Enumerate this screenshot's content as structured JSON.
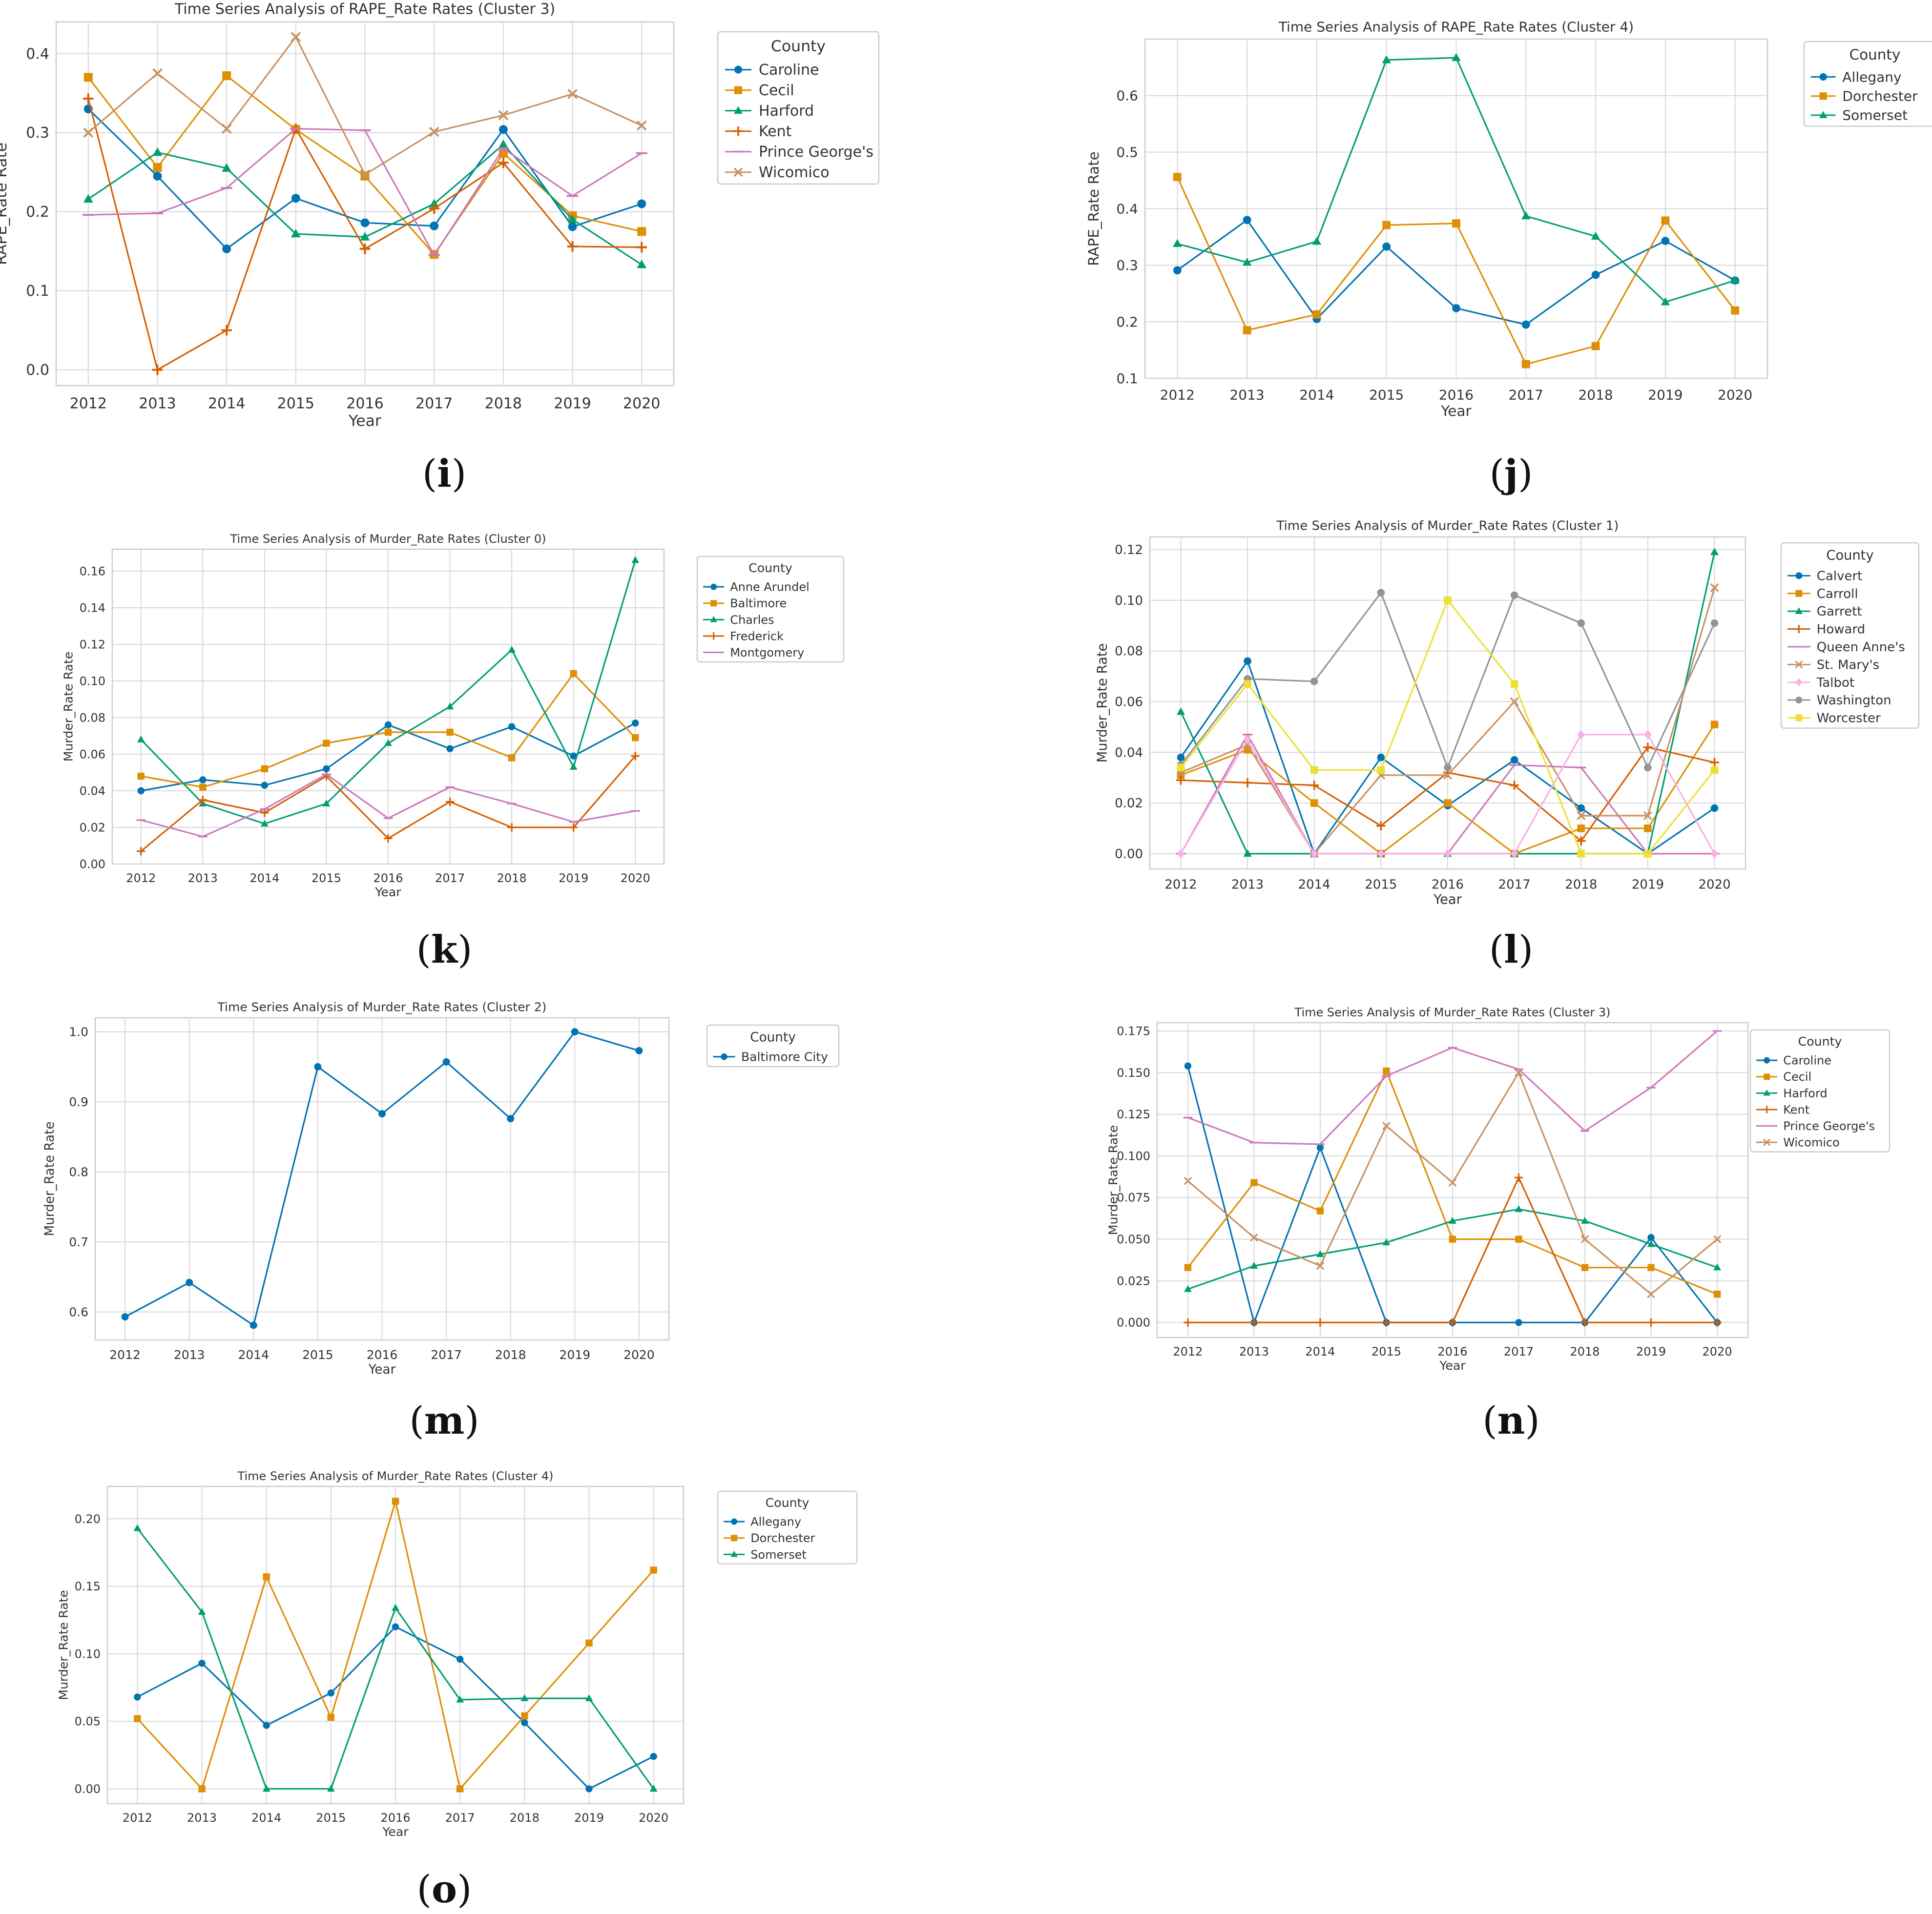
{
  "colors": {
    "palette": [
      "#0173B2",
      "#DE8F05",
      "#029E73",
      "#D55E00",
      "#CC78BC",
      "#CA9161",
      "#FBAFE4",
      "#949494",
      "#ECE133"
    ],
    "grid": "#d8d8d8",
    "axis": "#cccccc",
    "text": "#333333"
  },
  "legend_title": "County",
  "xlabel": "Year",
  "panels": [
    {
      "caption": "i",
      "chart_data": {
        "type": "line",
        "title": "Time Series Analysis of RAPE_Rate Rates (Cluster 3)",
        "xlabel": "Year",
        "ylabel": "RAPE_Rate Rate",
        "x": [
          2012,
          2013,
          2014,
          2015,
          2016,
          2017,
          2018,
          2019,
          2020
        ],
        "yticks": [
          "0.0",
          "0.1",
          "0.2",
          "0.3",
          "0.4"
        ],
        "ytick_values": [
          0,
          0.1,
          0.2,
          0.3,
          0.4
        ],
        "ylim": [
          -0.02,
          0.44
        ],
        "grid": true,
        "legend": "right",
        "series": [
          {
            "name": "Caroline",
            "marker": "circle",
            "values": [
              0.33,
              0.245,
              0.153,
              0.217,
              0.186,
              0.182,
              0.304,
              0.181,
              0.21
            ]
          },
          {
            "name": "Cecil",
            "marker": "square",
            "values": [
              0.37,
              0.256,
              0.372,
              0.304,
              0.245,
              0.146,
              0.274,
              0.195,
              0.175
            ]
          },
          {
            "name": "Harford",
            "marker": "triangle",
            "values": [
              0.216,
              0.275,
              0.255,
              0.172,
              0.168,
              0.21,
              0.285,
              0.19,
              0.133
            ]
          },
          {
            "name": "Kent",
            "marker": "plus",
            "values": [
              0.343,
              0.0,
              0.05,
              0.305,
              0.153,
              0.204,
              0.262,
              0.156,
              0.155
            ]
          },
          {
            "name": "Prince George's",
            "marker": "dash",
            "values": [
              0.196,
              0.198,
              0.23,
              0.305,
              0.303,
              0.145,
              0.28,
              0.22,
              0.274
            ]
          },
          {
            "name": "Wicomico",
            "marker": "x",
            "values": [
              0.3,
              0.375,
              0.305,
              0.421,
              0.247,
              0.301,
              0.322,
              0.349,
              0.309
            ]
          }
        ]
      }
    },
    {
      "caption": "j",
      "chart_data": {
        "type": "line",
        "title": "Time Series Analysis of RAPE_Rate Rates (Cluster 4)",
        "xlabel": "Year",
        "ylabel": "RAPE_Rate Rate",
        "x": [
          2012,
          2013,
          2014,
          2015,
          2016,
          2017,
          2018,
          2019,
          2020
        ],
        "yticks": [
          "0.1",
          "0.2",
          "0.3",
          "0.4",
          "0.5",
          "0.6"
        ],
        "ytick_values": [
          0.1,
          0.2,
          0.3,
          0.4,
          0.5,
          0.6
        ],
        "ylim": [
          0.1,
          0.7
        ],
        "grid": true,
        "legend": "right",
        "series": [
          {
            "name": "Allegany",
            "marker": "circle",
            "values": [
              0.291,
              0.38,
              0.205,
              0.333,
              0.224,
              0.195,
              0.283,
              0.343,
              0.273
            ]
          },
          {
            "name": "Dorchester",
            "marker": "square",
            "values": [
              0.456,
              0.185,
              0.213,
              0.371,
              0.374,
              0.125,
              0.157,
              0.379,
              0.22
            ]
          },
          {
            "name": "Somerset",
            "marker": "triangle",
            "values": [
              0.338,
              0.305,
              0.342,
              0.663,
              0.667,
              0.387,
              0.351,
              0.235,
              0.273
            ]
          }
        ]
      }
    },
    {
      "caption": "k",
      "chart_data": {
        "type": "line",
        "title": "Time Series Analysis of Murder_Rate Rates (Cluster 0)",
        "xlabel": "Year",
        "ylabel": "Murder_Rate Rate",
        "x": [
          2012,
          2013,
          2014,
          2015,
          2016,
          2017,
          2018,
          2019,
          2020
        ],
        "yticks": [
          "0.00",
          "0.02",
          "0.04",
          "0.06",
          "0.08",
          "0.10",
          "0.12",
          "0.14",
          "0.16"
        ],
        "ytick_values": [
          0,
          0.02,
          0.04,
          0.06,
          0.08,
          0.1,
          0.12,
          0.14,
          0.16
        ],
        "ylim": [
          0,
          0.172
        ],
        "grid": true,
        "legend": "right",
        "series": [
          {
            "name": "Anne Arundel",
            "marker": "circle",
            "values": [
              0.04,
              0.046,
              0.043,
              0.052,
              0.076,
              0.063,
              0.075,
              0.059,
              0.077
            ]
          },
          {
            "name": "Baltimore",
            "marker": "square",
            "values": [
              0.048,
              0.042,
              0.052,
              0.066,
              0.072,
              0.072,
              0.058,
              0.104,
              0.069
            ]
          },
          {
            "name": "Charles",
            "marker": "triangle",
            "values": [
              0.068,
              0.033,
              0.022,
              0.033,
              0.066,
              0.086,
              0.117,
              0.053,
              0.166
            ]
          },
          {
            "name": "Frederick",
            "marker": "plus",
            "values": [
              0.007,
              0.035,
              0.028,
              0.048,
              0.014,
              0.034,
              0.02,
              0.02,
              0.059
            ]
          },
          {
            "name": "Montgomery",
            "marker": "dash",
            "values": [
              0.024,
              0.015,
              0.03,
              0.049,
              0.025,
              0.042,
              0.033,
              0.023,
              0.029
            ]
          }
        ]
      }
    },
    {
      "caption": "l",
      "chart_data": {
        "type": "line",
        "title": "Time Series Analysis of Murder_Rate Rates (Cluster 1)",
        "xlabel": "Year",
        "ylabel": "Murder_Rate Rate",
        "x": [
          2012,
          2013,
          2014,
          2015,
          2016,
          2017,
          2018,
          2019,
          2020
        ],
        "yticks": [
          "0.00",
          "0.02",
          "0.04",
          "0.06",
          "0.08",
          "0.10",
          "0.12"
        ],
        "ytick_values": [
          0,
          0.02,
          0.04,
          0.06,
          0.08,
          0.1,
          0.12
        ],
        "ylim": [
          -0.006,
          0.125
        ],
        "grid": true,
        "legend": "right",
        "series": [
          {
            "name": "Calvert",
            "marker": "circle",
            "values": [
              0.038,
              0.076,
              0.0,
              0.038,
              0.019,
              0.037,
              0.018,
              0.0,
              0.018
            ]
          },
          {
            "name": "Carroll",
            "marker": "square",
            "values": [
              0.031,
              0.041,
              0.02,
              0.0,
              0.02,
              0.0,
              0.01,
              0.01,
              0.051
            ]
          },
          {
            "name": "Garrett",
            "marker": "triangle",
            "values": [
              0.056,
              0.0,
              0.0,
              0.0,
              0.0,
              0.0,
              0.0,
              0.0,
              0.119
            ]
          },
          {
            "name": "Howard",
            "marker": "plus",
            "values": [
              0.029,
              0.028,
              0.027,
              0.011,
              0.032,
              0.027,
              0.005,
              0.042,
              0.036
            ]
          },
          {
            "name": "Queen Anne's",
            "marker": "dash",
            "values": [
              0.0,
              0.047,
              0.0,
              0.0,
              0.0,
              0.035,
              0.034,
              0.0,
              0.0
            ]
          },
          {
            "name": "St. Mary's",
            "marker": "x",
            "values": [
              0.032,
              0.043,
              0.0,
              0.031,
              0.031,
              0.06,
              0.015,
              0.015,
              0.105
            ]
          },
          {
            "name": "Talbot",
            "marker": "diamond",
            "values": [
              0.0,
              0.045,
              0.0,
              0.0,
              0.0,
              0.0,
              0.047,
              0.047,
              0.0
            ]
          },
          {
            "name": "Washington",
            "marker": "circle",
            "values": [
              0.035,
              0.069,
              0.068,
              0.103,
              0.034,
              0.102,
              0.091,
              0.034,
              0.091
            ]
          },
          {
            "name": "Worcester",
            "marker": "square",
            "values": [
              0.034,
              0.067,
              0.033,
              0.033,
              0.1,
              0.067,
              0.0,
              0.0,
              0.033
            ]
          }
        ]
      }
    },
    {
      "caption": "m",
      "chart_data": {
        "type": "line",
        "title": "Time Series Analysis of Murder_Rate Rates (Cluster 2)",
        "xlabel": "Year",
        "ylabel": "Murder_Rate Rate",
        "x": [
          2012,
          2013,
          2014,
          2015,
          2016,
          2017,
          2018,
          2019,
          2020
        ],
        "yticks": [
          "0.6",
          "0.7",
          "0.8",
          "0.9",
          "1.0"
        ],
        "ytick_values": [
          0.6,
          0.7,
          0.8,
          0.9,
          1.0
        ],
        "ylim": [
          0.56,
          1.02
        ],
        "grid": true,
        "legend": "right",
        "series": [
          {
            "name": "Baltimore City",
            "marker": "circle",
            "values": [
              0.593,
              0.642,
              0.581,
              0.95,
              0.883,
              0.957,
              0.876,
              1.0,
              0.973
            ]
          }
        ]
      }
    },
    {
      "caption": "n",
      "chart_data": {
        "type": "line",
        "title": "Time Series Analysis of Murder_Rate Rates (Cluster 3)",
        "xlabel": "Year",
        "ylabel": "Murder_Rate Rate",
        "x": [
          2012,
          2013,
          2014,
          2015,
          2016,
          2017,
          2018,
          2019,
          2020
        ],
        "yticks": [
          "0.000",
          "0.025",
          "0.050",
          "0.075",
          "0.100",
          "0.125",
          "0.150",
          "0.175"
        ],
        "ytick_values": [
          0,
          0.025,
          0.05,
          0.075,
          0.1,
          0.125,
          0.15,
          0.175
        ],
        "ylim": [
          -0.009,
          0.18
        ],
        "grid": true,
        "legend": "right",
        "series": [
          {
            "name": "Caroline",
            "marker": "circle",
            "values": [
              0.154,
              0.0,
              0.105,
              0.0,
              0.0,
              0.0,
              0.0,
              0.051,
              0.0
            ]
          },
          {
            "name": "Cecil",
            "marker": "square",
            "values": [
              0.033,
              0.084,
              0.067,
              0.151,
              0.05,
              0.05,
              0.033,
              0.033,
              0.017
            ]
          },
          {
            "name": "Harford",
            "marker": "triangle",
            "values": [
              0.02,
              0.034,
              0.041,
              0.048,
              0.061,
              0.068,
              0.061,
              0.047,
              0.033
            ]
          },
          {
            "name": "Kent",
            "marker": "plus",
            "values": [
              0.0,
              0.0,
              0.0,
              0.0,
              0.0,
              0.087,
              0.0,
              0.0,
              0.0
            ]
          },
          {
            "name": "Prince George's",
            "marker": "dash",
            "values": [
              0.123,
              0.108,
              0.107,
              0.148,
              0.165,
              0.152,
              0.115,
              0.141,
              0.175
            ]
          },
          {
            "name": "Wicomico",
            "marker": "x",
            "values": [
              0.085,
              0.051,
              0.034,
              0.118,
              0.084,
              0.15,
              0.05,
              0.017,
              0.05
            ]
          }
        ]
      }
    },
    {
      "caption": "o",
      "chart_data": {
        "type": "line",
        "title": "Time Series Analysis of Murder_Rate Rates (Cluster 4)",
        "xlabel": "Year",
        "ylabel": "Murder_Rate Rate",
        "x": [
          2012,
          2013,
          2014,
          2015,
          2016,
          2017,
          2018,
          2019,
          2020
        ],
        "yticks": [
          "0.00",
          "0.05",
          "0.10",
          "0.15",
          "0.20"
        ],
        "ytick_values": [
          0,
          0.05,
          0.1,
          0.15,
          0.2
        ],
        "ylim": [
          -0.011,
          0.224
        ],
        "grid": true,
        "legend": "right",
        "series": [
          {
            "name": "Allegany",
            "marker": "circle",
            "values": [
              0.068,
              0.093,
              0.047,
              0.071,
              0.12,
              0.096,
              0.049,
              0.0,
              0.024
            ]
          },
          {
            "name": "Dorchester",
            "marker": "square",
            "values": [
              0.052,
              0.0,
              0.157,
              0.053,
              0.213,
              0.0,
              0.054,
              0.108,
              0.162
            ]
          },
          {
            "name": "Somerset",
            "marker": "triangle",
            "values": [
              0.193,
              0.131,
              0.0,
              0.0,
              0.134,
              0.066,
              0.067,
              0.067,
              0.0
            ]
          }
        ]
      }
    }
  ]
}
